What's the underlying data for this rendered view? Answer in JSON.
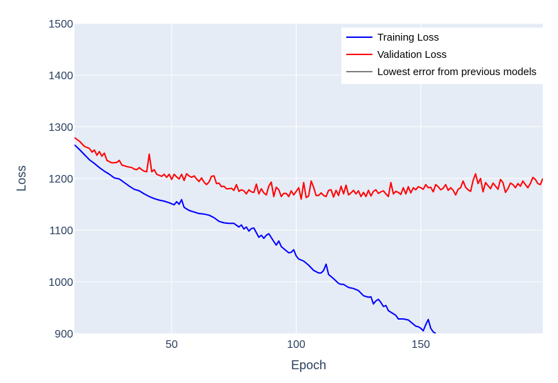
{
  "chart_data": {
    "type": "line",
    "title": "",
    "xlabel": "Epoch",
    "ylabel": "Loss",
    "xlim": [
      11,
      199
    ],
    "ylim": [
      900,
      1500
    ],
    "xticks": [
      50,
      100,
      150
    ],
    "yticks": [
      900,
      1000,
      1100,
      1200,
      1300,
      1400,
      1500
    ],
    "grid": true,
    "legend_position": "top-right",
    "series": [
      {
        "name": "Training Loss",
        "color": "#0000ff",
        "points": [
          [
            11,
            1265
          ],
          [
            13,
            1256
          ],
          [
            15,
            1246
          ],
          [
            17,
            1236
          ],
          [
            19,
            1229
          ],
          [
            21,
            1221
          ],
          [
            23,
            1214
          ],
          [
            25,
            1208
          ],
          [
            27,
            1201
          ],
          [
            29,
            1199
          ],
          [
            31,
            1192
          ],
          [
            33,
            1185
          ],
          [
            35,
            1179
          ],
          [
            37,
            1176
          ],
          [
            39,
            1170
          ],
          [
            41,
            1165
          ],
          [
            43,
            1161
          ],
          [
            45,
            1158
          ],
          [
            47,
            1156
          ],
          [
            49,
            1153
          ],
          [
            51,
            1149
          ],
          [
            52,
            1155
          ],
          [
            53,
            1150
          ],
          [
            54,
            1159
          ],
          [
            55,
            1144
          ],
          [
            57,
            1138
          ],
          [
            59,
            1135
          ],
          [
            61,
            1132
          ],
          [
            63,
            1131
          ],
          [
            65,
            1129
          ],
          [
            67,
            1124
          ],
          [
            69,
            1117
          ],
          [
            71,
            1114
          ],
          [
            73,
            1113
          ],
          [
            75,
            1113
          ],
          [
            77,
            1106
          ],
          [
            78,
            1110
          ],
          [
            79,
            1102
          ],
          [
            80,
            1106
          ],
          [
            81,
            1098
          ],
          [
            82,
            1103
          ],
          [
            83,
            1104
          ],
          [
            85,
            1086
          ],
          [
            86,
            1090
          ],
          [
            87,
            1084
          ],
          [
            88,
            1090
          ],
          [
            89,
            1093
          ],
          [
            91,
            1078
          ],
          [
            92,
            1071
          ],
          [
            93,
            1079
          ],
          [
            94,
            1068
          ],
          [
            95,
            1064
          ],
          [
            97,
            1056
          ],
          [
            98,
            1057
          ],
          [
            99,
            1062
          ],
          [
            100,
            1050
          ],
          [
            101,
            1044
          ],
          [
            103,
            1040
          ],
          [
            105,
            1032
          ],
          [
            107,
            1022
          ],
          [
            109,
            1017
          ],
          [
            110,
            1017
          ],
          [
            111,
            1022
          ],
          [
            112,
            1034
          ],
          [
            113,
            1014
          ],
          [
            115,
            1006
          ],
          [
            117,
            997
          ],
          [
            118,
            995
          ],
          [
            119,
            995
          ],
          [
            121,
            989
          ],
          [
            123,
            987
          ],
          [
            125,
            983
          ],
          [
            127,
            973
          ],
          [
            129,
            970
          ],
          [
            130,
            971
          ],
          [
            131,
            957
          ],
          [
            132,
            963
          ],
          [
            133,
            966
          ],
          [
            134,
            960
          ],
          [
            135,
            952
          ],
          [
            136,
            954
          ],
          [
            137,
            944
          ],
          [
            139,
            938
          ],
          [
            140,
            935
          ],
          [
            141,
            928
          ],
          [
            143,
            928
          ],
          [
            145,
            926
          ],
          [
            146,
            922
          ],
          [
            148,
            914
          ],
          [
            149,
            913
          ],
          [
            150,
            910
          ],
          [
            151,
            905
          ],
          [
            152,
            917
          ],
          [
            153,
            927
          ],
          [
            154,
            910
          ],
          [
            155,
            903
          ],
          [
            156,
            900
          ]
        ]
      },
      {
        "name": "Validation Loss",
        "color": "#ff0000",
        "points": [
          [
            11,
            1279
          ],
          [
            13,
            1272
          ],
          [
            15,
            1262
          ],
          [
            17,
            1258
          ],
          [
            18,
            1251
          ],
          [
            19,
            1255
          ],
          [
            20,
            1245
          ],
          [
            21,
            1252
          ],
          [
            22,
            1243
          ],
          [
            23,
            1249
          ],
          [
            24,
            1235
          ],
          [
            26,
            1230
          ],
          [
            28,
            1231
          ],
          [
            29,
            1235
          ],
          [
            30,
            1226
          ],
          [
            32,
            1223
          ],
          [
            34,
            1221
          ],
          [
            35,
            1218
          ],
          [
            36,
            1217
          ],
          [
            37,
            1221
          ],
          [
            38,
            1217
          ],
          [
            39,
            1214
          ],
          [
            40,
            1213
          ],
          [
            41,
            1247
          ],
          [
            42,
            1213
          ],
          [
            43,
            1217
          ],
          [
            44,
            1208
          ],
          [
            46,
            1204
          ],
          [
            47,
            1208
          ],
          [
            48,
            1202
          ],
          [
            49,
            1208
          ],
          [
            50,
            1198
          ],
          [
            51,
            1208
          ],
          [
            52,
            1203
          ],
          [
            53,
            1199
          ],
          [
            54,
            1208
          ],
          [
            55,
            1196
          ],
          [
            56,
            1209
          ],
          [
            57,
            1205
          ],
          [
            58,
            1202
          ],
          [
            59,
            1205
          ],
          [
            60,
            1199
          ],
          [
            61,
            1194
          ],
          [
            62,
            1201
          ],
          [
            63,
            1193
          ],
          [
            64,
            1188
          ],
          [
            65,
            1193
          ],
          [
            66,
            1204
          ],
          [
            67,
            1205
          ],
          [
            68,
            1190
          ],
          [
            69,
            1191
          ],
          [
            70,
            1184
          ],
          [
            71,
            1185
          ],
          [
            72,
            1180
          ],
          [
            73,
            1180
          ],
          [
            74,
            1181
          ],
          [
            75,
            1177
          ],
          [
            76,
            1188
          ],
          [
            77,
            1175
          ],
          [
            78,
            1178
          ],
          [
            79,
            1176
          ],
          [
            80,
            1170
          ],
          [
            81,
            1178
          ],
          [
            82,
            1174
          ],
          [
            83,
            1173
          ],
          [
            84,
            1189
          ],
          [
            85,
            1170
          ],
          [
            86,
            1180
          ],
          [
            87,
            1172
          ],
          [
            88,
            1168
          ],
          [
            89,
            1185
          ],
          [
            90,
            1193
          ],
          [
            91,
            1165
          ],
          [
            92,
            1183
          ],
          [
            93,
            1178
          ],
          [
            94,
            1165
          ],
          [
            95,
            1171
          ],
          [
            96,
            1171
          ],
          [
            97,
            1165
          ],
          [
            98,
            1176
          ],
          [
            99,
            1168
          ],
          [
            100,
            1175
          ],
          [
            101,
            1182
          ],
          [
            102,
            1160
          ],
          [
            103,
            1192
          ],
          [
            104,
            1163
          ],
          [
            105,
            1166
          ],
          [
            106,
            1195
          ],
          [
            107,
            1183
          ],
          [
            108,
            1167
          ],
          [
            109,
            1167
          ],
          [
            110,
            1172
          ],
          [
            111,
            1167
          ],
          [
            112,
            1165
          ],
          [
            113,
            1177
          ],
          [
            114,
            1178
          ],
          [
            115,
            1164
          ],
          [
            116,
            1177
          ],
          [
            117,
            1167
          ],
          [
            118,
            1185
          ],
          [
            119,
            1170
          ],
          [
            120,
            1187
          ],
          [
            121,
            1168
          ],
          [
            122,
            1172
          ],
          [
            123,
            1177
          ],
          [
            124,
            1170
          ],
          [
            125,
            1176
          ],
          [
            126,
            1165
          ],
          [
            127,
            1173
          ],
          [
            128,
            1165
          ],
          [
            129,
            1177
          ],
          [
            130,
            1166
          ],
          [
            131,
            1175
          ],
          [
            132,
            1178
          ],
          [
            133,
            1171
          ],
          [
            134,
            1174
          ],
          [
            135,
            1176
          ],
          [
            136,
            1170
          ],
          [
            137,
            1165
          ],
          [
            138,
            1192
          ],
          [
            139,
            1170
          ],
          [
            140,
            1175
          ],
          [
            141,
            1173
          ],
          [
            142,
            1169
          ],
          [
            143,
            1182
          ],
          [
            144,
            1170
          ],
          [
            145,
            1184
          ],
          [
            146,
            1172
          ],
          [
            147,
            1182
          ],
          [
            148,
            1178
          ],
          [
            149,
            1184
          ],
          [
            150,
            1182
          ],
          [
            151,
            1179
          ],
          [
            152,
            1188
          ],
          [
            153,
            1182
          ],
          [
            154,
            1183
          ],
          [
            155,
            1174
          ],
          [
            156,
            1188
          ],
          [
            157,
            1184
          ],
          [
            158,
            1178
          ],
          [
            159,
            1181
          ],
          [
            160,
            1188
          ],
          [
            161,
            1177
          ],
          [
            162,
            1182
          ],
          [
            163,
            1177
          ],
          [
            164,
            1168
          ],
          [
            165,
            1179
          ],
          [
            166,
            1182
          ],
          [
            167,
            1195
          ],
          [
            168,
            1183
          ],
          [
            169,
            1178
          ],
          [
            170,
            1175
          ],
          [
            171,
            1196
          ],
          [
            172,
            1209
          ],
          [
            173,
            1190
          ],
          [
            174,
            1200
          ],
          [
            175,
            1174
          ],
          [
            176,
            1192
          ],
          [
            177,
            1186
          ],
          [
            178,
            1180
          ],
          [
            179,
            1191
          ],
          [
            180,
            1185
          ],
          [
            181,
            1179
          ],
          [
            182,
            1198
          ],
          [
            183,
            1192
          ],
          [
            184,
            1173
          ],
          [
            185,
            1180
          ],
          [
            186,
            1191
          ],
          [
            187,
            1188
          ],
          [
            188,
            1182
          ],
          [
            189,
            1190
          ],
          [
            190,
            1185
          ],
          [
            191,
            1195
          ],
          [
            192,
            1188
          ],
          [
            193,
            1182
          ],
          [
            194,
            1190
          ],
          [
            195,
            1202
          ],
          [
            196,
            1198
          ],
          [
            197,
            1190
          ],
          [
            198,
            1188
          ],
          [
            199,
            1200
          ]
        ]
      }
    ],
    "legend": [
      {
        "name": "Training Loss",
        "color": "#0000ff"
      },
      {
        "name": "Validation Loss",
        "color": "#ff0000"
      },
      {
        "name": "Lowest error from previous models",
        "color": "#808080"
      }
    ]
  }
}
